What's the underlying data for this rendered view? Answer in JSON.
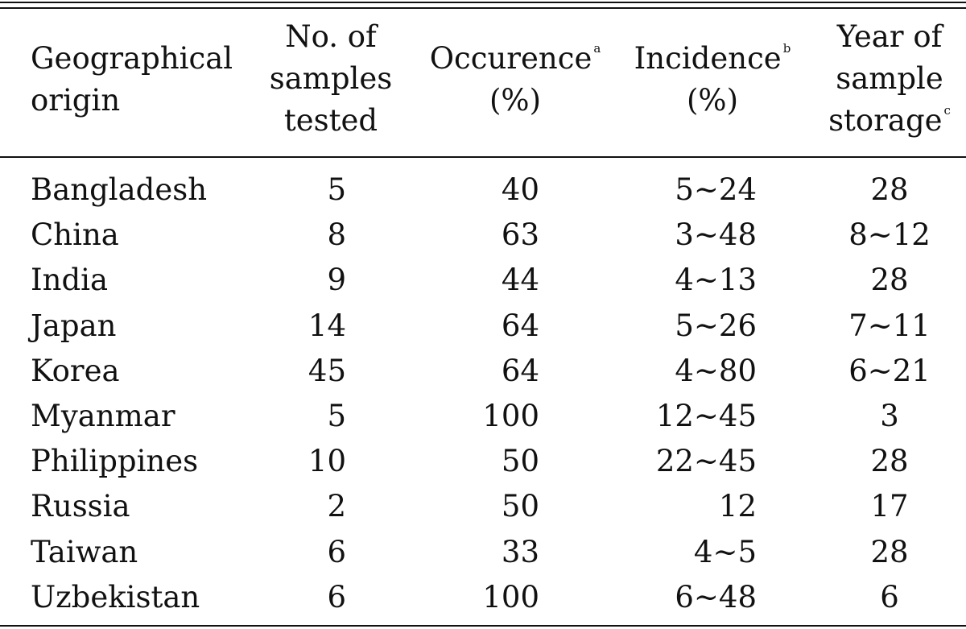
{
  "table": {
    "headers": {
      "origin": [
        "Geographical",
        "origin"
      ],
      "samples": [
        "No. of",
        "samples",
        "tested"
      ],
      "occurrence": {
        "label": "Occurence",
        "sup": "a",
        "unit": "(%)"
      },
      "incidence": {
        "label": "Incidence",
        "sup": "b",
        "unit": "(%)"
      },
      "year": {
        "lines": [
          "Year of",
          "sample",
          "storage"
        ],
        "sup": "c"
      }
    },
    "rows": [
      {
        "origin": "Bangladesh",
        "samples": "5",
        "occurrence": "40",
        "incidence": "5~24",
        "year": "28"
      },
      {
        "origin": "China",
        "samples": "8",
        "occurrence": "63",
        "incidence": "3~48",
        "year": "8~12"
      },
      {
        "origin": "India",
        "samples": "9",
        "occurrence": "44",
        "incidence": "4~13",
        "year": "28"
      },
      {
        "origin": "Japan",
        "samples": "14",
        "occurrence": "64",
        "incidence": "5~26",
        "year": "7~11"
      },
      {
        "origin": "Korea",
        "samples": "45",
        "occurrence": "64",
        "incidence": "4~80",
        "year": "6~21"
      },
      {
        "origin": "Myanmar",
        "samples": "5",
        "occurrence": "100",
        "incidence": "12~45",
        "year": "3"
      },
      {
        "origin": "Philippines",
        "samples": "10",
        "occurrence": "50",
        "incidence": "22~45",
        "year": "28"
      },
      {
        "origin": "Russia",
        "samples": "2",
        "occurrence": "50",
        "incidence": "12",
        "year": "17"
      },
      {
        "origin": "Taiwan",
        "samples": "6",
        "occurrence": "33",
        "incidence": "4~5",
        "year": "28"
      },
      {
        "origin": "Uzbekistan",
        "samples": "6",
        "occurrence": "100",
        "incidence": "6~48",
        "year": "6"
      }
    ]
  }
}
